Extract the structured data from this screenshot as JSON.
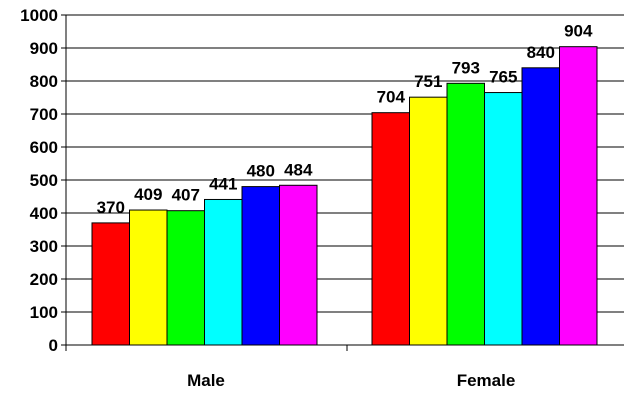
{
  "chart_data": {
    "type": "bar",
    "categories": [
      "Male",
      "Female"
    ],
    "series": [
      {
        "values": [
          370,
          704
        ],
        "color": "#ff0000"
      },
      {
        "values": [
          409,
          751
        ],
        "color": "#ffff00"
      },
      {
        "values": [
          407,
          793
        ],
        "color": "#00ff00"
      },
      {
        "values": [
          441,
          765
        ],
        "color": "#00ffff"
      },
      {
        "values": [
          480,
          840
        ],
        "color": "#0000ff"
      },
      {
        "values": [
          484,
          904
        ],
        "color": "#ff00ff"
      }
    ],
    "data_labels": [
      [
        "370",
        "409",
        "407",
        "441",
        "480",
        "484"
      ],
      [
        "704",
        "751",
        "793",
        "765",
        "840",
        "904"
      ]
    ],
    "yticks": [
      "0",
      "100",
      "200",
      "300",
      "400",
      "500",
      "600",
      "700",
      "800",
      "900",
      "1000"
    ],
    "ylim": [
      0,
      1000
    ],
    "title": "",
    "xlabel": "",
    "ylabel": "",
    "grid": true,
    "legend": false
  }
}
